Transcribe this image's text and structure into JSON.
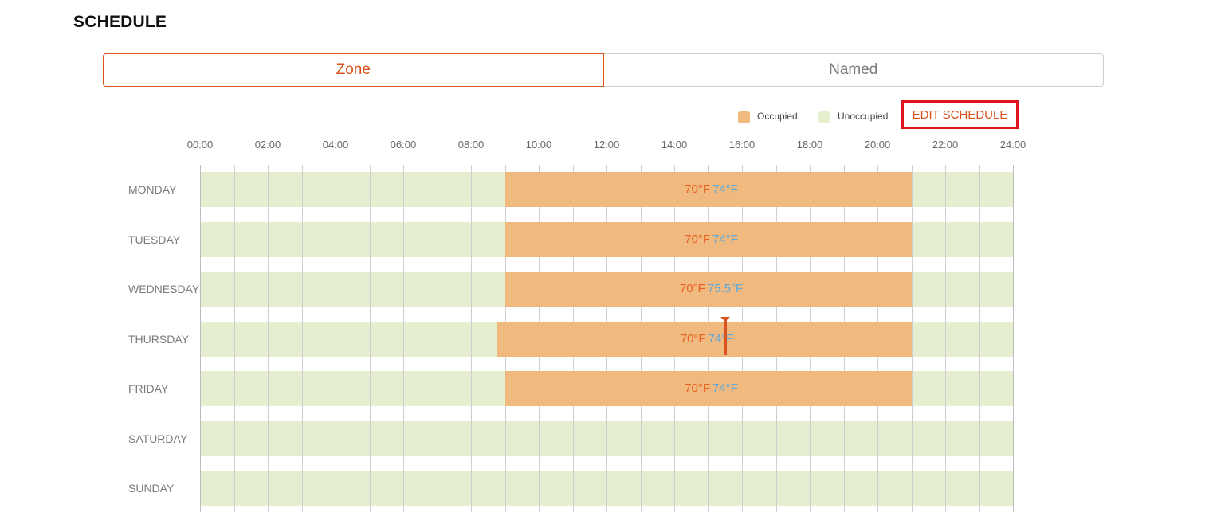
{
  "page_title": "SCHEDULE",
  "tabs": [
    {
      "label": "Zone",
      "active": true
    },
    {
      "label": "Named",
      "active": false
    }
  ],
  "legend": {
    "occupied": {
      "label": "Occupied",
      "color": "#f0b97f"
    },
    "unoccupied": {
      "label": "Unoccupied",
      "color": "#e5efd0"
    }
  },
  "edit_button": {
    "label": "EDIT SCHEDULE"
  },
  "timeline": {
    "start_hour": 0,
    "end_hour": 24,
    "tick_labels": [
      "00:00",
      "02:00",
      "04:00",
      "06:00",
      "08:00",
      "10:00",
      "12:00",
      "14:00",
      "16:00",
      "18:00",
      "20:00",
      "22:00",
      "24:00"
    ]
  },
  "days": [
    {
      "name": "MONDAY",
      "occupied": {
        "start": 9.0,
        "end": 21.0
      },
      "heat": "70°F",
      "cool": "74°F"
    },
    {
      "name": "TUESDAY",
      "occupied": {
        "start": 9.0,
        "end": 21.0
      },
      "heat": "70°F",
      "cool": "74°F"
    },
    {
      "name": "WEDNESDAY",
      "occupied": {
        "start": 9.0,
        "end": 21.0
      },
      "heat": "70°F",
      "cool": "75.5°F"
    },
    {
      "name": "THURSDAY",
      "occupied": {
        "start": 8.75,
        "end": 21.0
      },
      "heat": "70°F",
      "cool": "74°F",
      "current_time": 15.5
    },
    {
      "name": "FRIDAY",
      "occupied": {
        "start": 9.0,
        "end": 21.0
      },
      "heat": "70°F",
      "cool": "74°F"
    },
    {
      "name": "SATURDAY",
      "occupied": null,
      "heat": "",
      "cool": ""
    },
    {
      "name": "SUNDAY",
      "occupied": null,
      "heat": "",
      "cool": ""
    }
  ]
}
